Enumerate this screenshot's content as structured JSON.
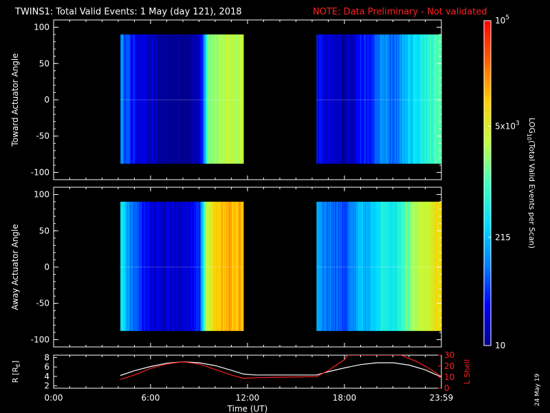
{
  "title": {
    "main": "TWINS1: Total Valid Events:  1 May (day 121), 2018",
    "note": "NOTE: Data Preliminary - Not validated"
  },
  "colors": {
    "background": "#000000",
    "note": "#ff2020",
    "r_line": "#ffffff",
    "lshell_line": "#ff2020"
  },
  "colorbar": {
    "label": "LOG10(Total Valid Events per Scan)",
    "label_parts": {
      "pre": "LOG",
      "sub": "10",
      "post": "(Total Valid Events per Scan)"
    },
    "ticks": [
      {
        "value": 10,
        "text": "10"
      },
      {
        "value": 215,
        "text": "215"
      },
      {
        "value": 5000,
        "text_base": "5x10",
        "text_exp": "3"
      },
      {
        "value": 100000,
        "text_base": "10",
        "text_exp": "5"
      }
    ],
    "range": [
      10,
      100000
    ],
    "scale": "log",
    "colormap": [
      "#00008c",
      "#0000ff",
      "#0080ff",
      "#00e0ff",
      "#40ffc0",
      "#c0ff40",
      "#ffd000",
      "#ff6000",
      "#ff0000"
    ]
  },
  "chart_data": [
    {
      "type": "heatmap",
      "name": "toward",
      "ylabel": "Toward Actuator Angle",
      "ylim": [
        -110,
        110
      ],
      "yticks": [
        -100,
        -50,
        0,
        50,
        100
      ],
      "y_extent": [
        -88,
        90
      ],
      "xlim": [
        0,
        24
      ],
      "blocks": [
        {
          "t_start": 4.13,
          "t_end": 11.75
        },
        {
          "t_start": 16.27,
          "t_end": 23.98
        }
      ],
      "profile": [
        {
          "t": 4.13,
          "v": 2.1
        },
        {
          "t": 4.5,
          "v": 1.8
        },
        {
          "t": 5.0,
          "v": 1.5
        },
        {
          "t": 5.5,
          "v": 1.3
        },
        {
          "t": 6.0,
          "v": 1.2
        },
        {
          "t": 6.5,
          "v": 1.1
        },
        {
          "t": 7.0,
          "v": 1.05
        },
        {
          "t": 7.5,
          "v": 1.0
        },
        {
          "t": 8.0,
          "v": 1.0
        },
        {
          "t": 8.5,
          "v": 1.1
        },
        {
          "t": 9.0,
          "v": 1.2
        },
        {
          "t": 9.2,
          "v": 1.6
        },
        {
          "t": 9.5,
          "v": 3.2
        },
        {
          "t": 10.0,
          "v": 3.4
        },
        {
          "t": 10.5,
          "v": 3.5
        },
        {
          "t": 11.0,
          "v": 3.5
        },
        {
          "t": 11.75,
          "v": 3.5
        },
        {
          "t": 16.27,
          "v": 1.6
        },
        {
          "t": 16.8,
          "v": 1.3
        },
        {
          "t": 17.5,
          "v": 1.2
        },
        {
          "t": 18.0,
          "v": 1.15
        },
        {
          "t": 18.5,
          "v": 1.3
        },
        {
          "t": 19.0,
          "v": 1.6
        },
        {
          "t": 19.5,
          "v": 1.5
        },
        {
          "t": 20.0,
          "v": 1.9
        },
        {
          "t": 20.5,
          "v": 2.1
        },
        {
          "t": 21.0,
          "v": 1.8
        },
        {
          "t": 21.5,
          "v": 2.2
        },
        {
          "t": 22.0,
          "v": 2.4
        },
        {
          "t": 22.5,
          "v": 2.6
        },
        {
          "t": 23.0,
          "v": 2.8
        },
        {
          "t": 23.5,
          "v": 3.0
        },
        {
          "t": 23.98,
          "v": 3.1
        }
      ]
    },
    {
      "type": "heatmap",
      "name": "away",
      "ylabel": "Away Actuator Angle",
      "ylim": [
        -110,
        110
      ],
      "yticks": [
        -100,
        -50,
        0,
        50,
        100
      ],
      "y_extent": [
        -88,
        90
      ],
      "xlim": [
        0,
        24
      ],
      "blocks": [
        {
          "t_start": 4.13,
          "t_end": 11.75
        },
        {
          "t_start": 16.27,
          "t_end": 23.98
        }
      ],
      "profile": [
        {
          "t": 4.13,
          "v": 2.6
        },
        {
          "t": 4.5,
          "v": 2.3
        },
        {
          "t": 5.0,
          "v": 1.9
        },
        {
          "t": 5.5,
          "v": 1.6
        },
        {
          "t": 6.0,
          "v": 1.4
        },
        {
          "t": 6.5,
          "v": 1.3
        },
        {
          "t": 7.0,
          "v": 1.3
        },
        {
          "t": 7.5,
          "v": 1.2
        },
        {
          "t": 8.0,
          "v": 1.3
        },
        {
          "t": 8.5,
          "v": 1.4
        },
        {
          "t": 9.0,
          "v": 1.6
        },
        {
          "t": 9.2,
          "v": 2.6
        },
        {
          "t": 9.5,
          "v": 3.6
        },
        {
          "t": 10.0,
          "v": 4.0
        },
        {
          "t": 10.5,
          "v": 4.1
        },
        {
          "t": 11.0,
          "v": 4.1
        },
        {
          "t": 11.75,
          "v": 4.1
        },
        {
          "t": 16.27,
          "v": 2.3
        },
        {
          "t": 16.8,
          "v": 2.0
        },
        {
          "t": 17.5,
          "v": 1.9
        },
        {
          "t": 18.0,
          "v": 1.8
        },
        {
          "t": 18.5,
          "v": 2.0
        },
        {
          "t": 19.0,
          "v": 2.3
        },
        {
          "t": 19.5,
          "v": 2.2
        },
        {
          "t": 20.0,
          "v": 2.6
        },
        {
          "t": 20.5,
          "v": 2.8
        },
        {
          "t": 21.0,
          "v": 2.6
        },
        {
          "t": 21.5,
          "v": 3.0
        },
        {
          "t": 22.0,
          "v": 3.2
        },
        {
          "t": 22.5,
          "v": 3.4
        },
        {
          "t": 23.0,
          "v": 3.6
        },
        {
          "t": 23.5,
          "v": 3.8
        },
        {
          "t": 23.98,
          "v": 4.0
        }
      ]
    },
    {
      "type": "line",
      "name": "ephemeris",
      "ylabel": "R [RE]",
      "ylabel_parts": {
        "pre": "R [R",
        "sub": "E",
        "post": "]"
      },
      "y2label": "L Shell",
      "xlabel": "Time (UT)",
      "xlim": [
        0,
        24
      ],
      "xticks": [
        {
          "value": 0,
          "text": "0:00"
        },
        {
          "value": 6,
          "text": "6:00"
        },
        {
          "value": 12,
          "text": "12:00"
        },
        {
          "value": 18,
          "text": "18:00"
        },
        {
          "value": 24,
          "text": "23:59"
        }
      ],
      "ylim": [
        1.5,
        8.5
      ],
      "yticks": [
        2,
        4,
        6,
        8
      ],
      "y2lim": [
        0,
        30
      ],
      "y2ticks": [
        0,
        10,
        20,
        30
      ],
      "series": [
        {
          "name": "R",
          "axis": "left",
          "x": [
            4.13,
            5.0,
            6.0,
            7.0,
            8.0,
            9.0,
            10.0,
            11.0,
            11.75,
            12.5,
            14.0,
            16.27,
            17.0,
            18.0,
            19.0,
            20.0,
            21.0,
            22.0,
            23.0,
            23.98
          ],
          "y": [
            4.2,
            5.2,
            6.1,
            6.8,
            7.1,
            6.9,
            6.3,
            5.3,
            4.5,
            4.3,
            4.3,
            4.3,
            5.0,
            5.8,
            6.5,
            6.9,
            6.9,
            6.4,
            5.4,
            3.9
          ]
        },
        {
          "name": "L Shell",
          "axis": "right",
          "x": [
            4.13,
            5.0,
            6.0,
            7.0,
            8.0,
            9.0,
            10.0,
            11.0,
            11.75,
            12.5,
            14.0,
            16.27,
            17.0,
            18.0,
            18.2,
            21.5,
            22.5,
            23.0,
            23.98
          ],
          "y": [
            8.0,
            12.0,
            18.0,
            22.0,
            24.0,
            22.0,
            17.0,
            12.0,
            9.0,
            9.5,
            10.0,
            10.5,
            16.0,
            26.0,
            30.0,
            30.0,
            24.0,
            20.0,
            11.0
          ]
        }
      ]
    }
  ],
  "footer_date": "24 May 19"
}
